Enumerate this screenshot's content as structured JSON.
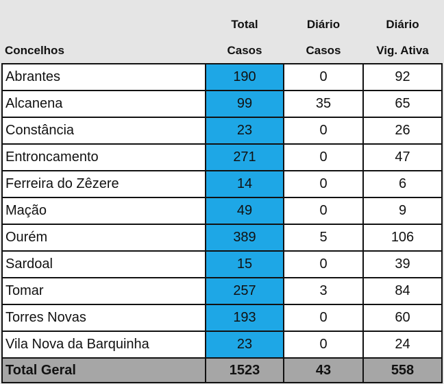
{
  "headers": {
    "row1": [
      "",
      "Total",
      "Diário",
      "Diário"
    ],
    "row2": [
      "Concelhos",
      "Casos",
      "Casos",
      "Vig. Ativa"
    ]
  },
  "rows": [
    {
      "concelho": "Abrantes",
      "total": "190",
      "diario": "0",
      "vig": "92"
    },
    {
      "concelho": "Alcanena",
      "total": "99",
      "diario": "35",
      "vig": "65"
    },
    {
      "concelho": "Constância",
      "total": "23",
      "diario": "0",
      "vig": "26"
    },
    {
      "concelho": "Entroncamento",
      "total": "271",
      "diario": "0",
      "vig": "47"
    },
    {
      "concelho": "Ferreira do Zêzere",
      "total": "14",
      "diario": "0",
      "vig": "6"
    },
    {
      "concelho": "Mação",
      "total": "49",
      "diario": "0",
      "vig": "9"
    },
    {
      "concelho": "Ourém",
      "total": "389",
      "diario": "5",
      "vig": "106"
    },
    {
      "concelho": "Sardoal",
      "total": "15",
      "diario": "0",
      "vig": "39"
    },
    {
      "concelho": "Tomar",
      "total": "257",
      "diario": "3",
      "vig": "84"
    },
    {
      "concelho": "Torres Novas",
      "total": "193",
      "diario": "0",
      "vig": "60"
    },
    {
      "concelho": "Vila Nova da Barquinha",
      "total": "23",
      "diario": "0",
      "vig": "24"
    }
  ],
  "footer": {
    "label": "Total Geral",
    "total": "1523",
    "diario": "43",
    "vig": "558"
  },
  "colors": {
    "total_column": "#1ea7e6",
    "footer_bg": "#a6a6a6",
    "page_bg": "#e5e5e5"
  }
}
